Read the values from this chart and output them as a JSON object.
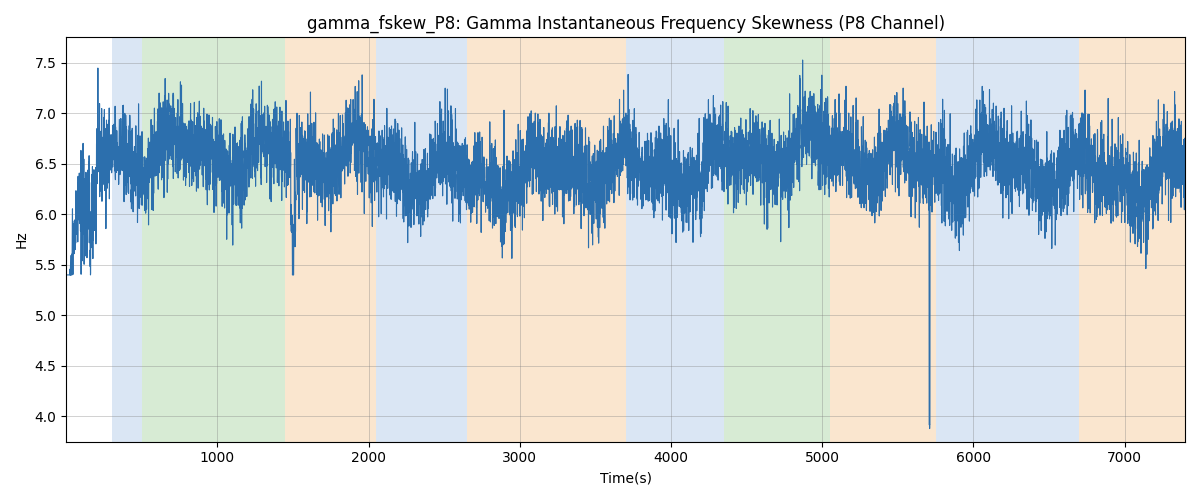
{
  "title": "gamma_fskew_P8: Gamma Instantaneous Frequency Skewness (P8 Channel)",
  "xlabel": "Time(s)",
  "ylabel": "Hz",
  "xlim": [
    0,
    7400
  ],
  "ylim": [
    3.75,
    7.75
  ],
  "yticks": [
    4.0,
    4.5,
    5.0,
    5.5,
    6.0,
    6.5,
    7.0,
    7.5
  ],
  "xticks": [
    1000,
    2000,
    3000,
    4000,
    5000,
    6000,
    7000
  ],
  "line_color": "#2c6fad",
  "line_width": 0.8,
  "bg_bands": [
    {
      "xmin": 300,
      "xmax": 500,
      "color": "#adc8e8",
      "alpha": 0.45
    },
    {
      "xmin": 500,
      "xmax": 1450,
      "color": "#a8d4a0",
      "alpha": 0.45
    },
    {
      "xmin": 1450,
      "xmax": 2050,
      "color": "#f5c896",
      "alpha": 0.45
    },
    {
      "xmin": 2050,
      "xmax": 2650,
      "color": "#adc8e8",
      "alpha": 0.45
    },
    {
      "xmin": 2650,
      "xmax": 3700,
      "color": "#f5c896",
      "alpha": 0.45
    },
    {
      "xmin": 3700,
      "xmax": 4100,
      "color": "#adc8e8",
      "alpha": 0.45
    },
    {
      "xmin": 4100,
      "xmax": 4350,
      "color": "#adc8e8",
      "alpha": 0.45
    },
    {
      "xmin": 4350,
      "xmax": 5050,
      "color": "#a8d4a0",
      "alpha": 0.45
    },
    {
      "xmin": 5050,
      "xmax": 5750,
      "color": "#f5c896",
      "alpha": 0.45
    },
    {
      "xmin": 5750,
      "xmax": 6700,
      "color": "#adc8e8",
      "alpha": 0.45
    },
    {
      "xmin": 6700,
      "xmax": 7400,
      "color": "#f5c896",
      "alpha": 0.45
    }
  ],
  "seed": 42,
  "n_points": 7400,
  "t_start": 0,
  "t_end": 7400
}
